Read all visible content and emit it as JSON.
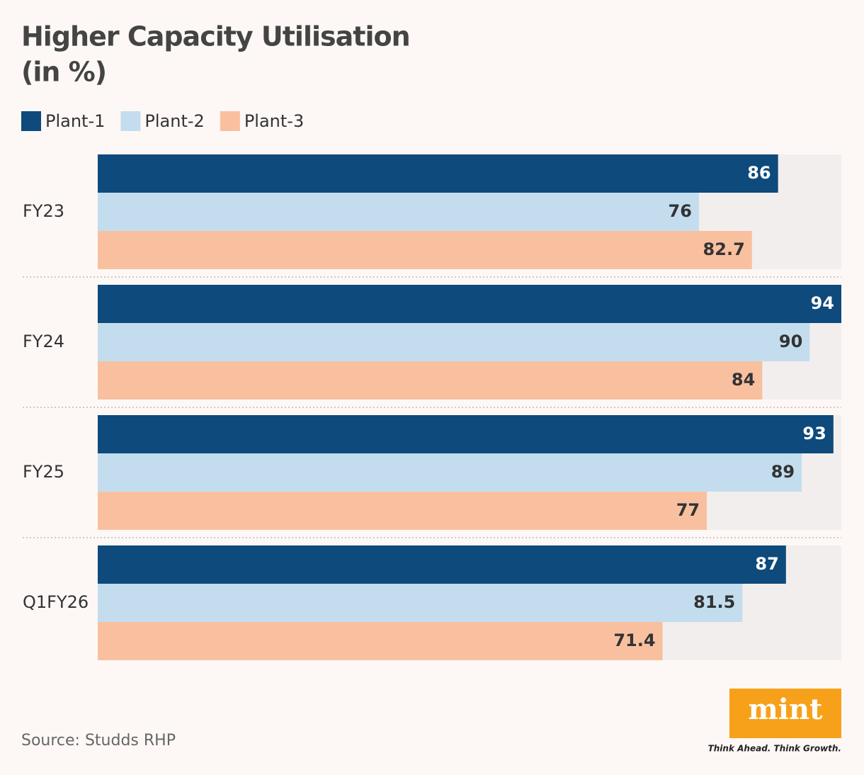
{
  "chart_data": {
    "type": "bar",
    "orientation": "horizontal",
    "title": "Higher Capacity Utilisation",
    "subtitle": "(in %)",
    "categories": [
      "FY23",
      "FY24",
      "FY25",
      "Q1FY26"
    ],
    "series": [
      {
        "name": "Plant-1",
        "color": "#0e4a7b",
        "values": [
          86,
          94,
          93,
          87
        ]
      },
      {
        "name": "Plant-2",
        "color": "#c3ddef",
        "values": [
          76,
          90,
          89,
          81.5
        ]
      },
      {
        "name": "Plant-3",
        "color": "#f9c09f",
        "values": [
          82.7,
          84,
          77,
          71.4
        ]
      }
    ],
    "source": "Source: Studds RHP"
  },
  "logo": {
    "name": "mint",
    "tagline": "Think Ahead. Think Growth."
  }
}
